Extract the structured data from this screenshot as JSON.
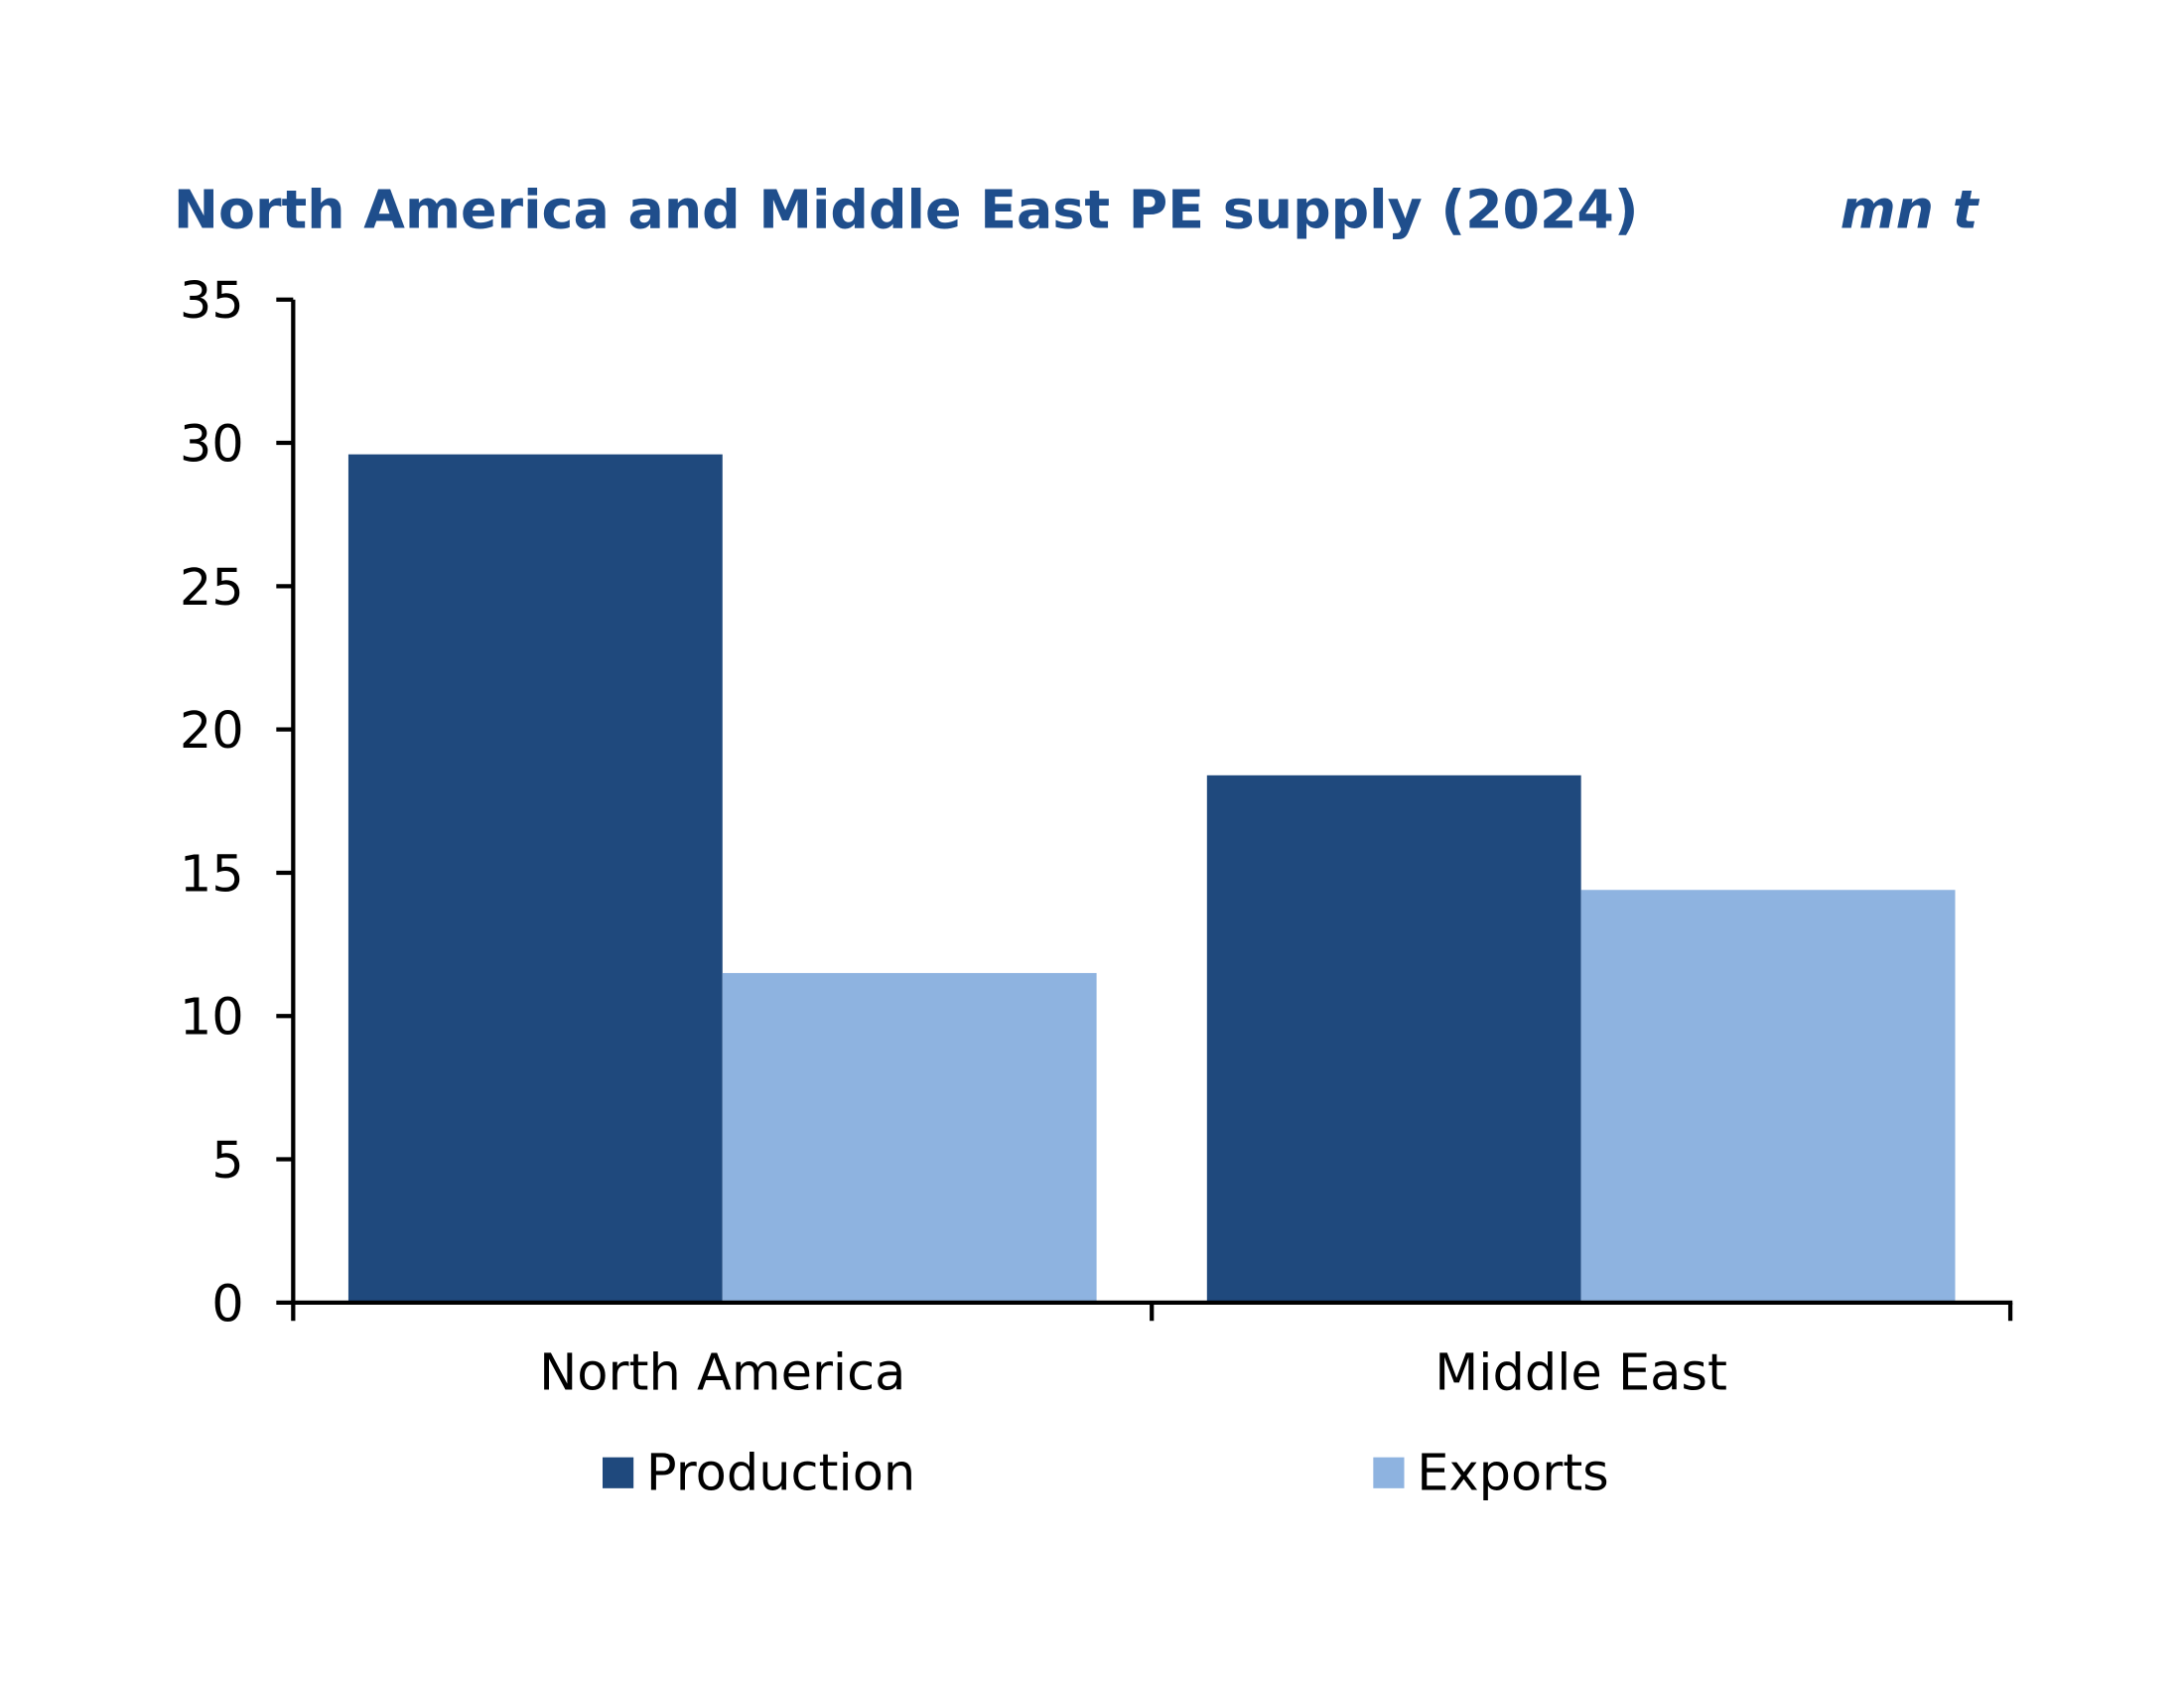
{
  "chart_data": {
    "type": "bar",
    "title": "North America and Middle East PE supply (2024)",
    "unit_label": "mn t",
    "xlabel": "",
    "ylabel": "",
    "categories": [
      "North America",
      "Middle East"
    ],
    "series": [
      {
        "name": "Production",
        "color": "#1f497d",
        "values": [
          29.6,
          18.4
        ]
      },
      {
        "name": "Exports",
        "color": "#8eb3e0",
        "values": [
          11.5,
          14.4
        ]
      }
    ],
    "ylim": [
      0,
      35
    ],
    "yticks": [
      0,
      5,
      10,
      15,
      20,
      25,
      30,
      35
    ],
    "grid": false,
    "legend": "bottom"
  }
}
